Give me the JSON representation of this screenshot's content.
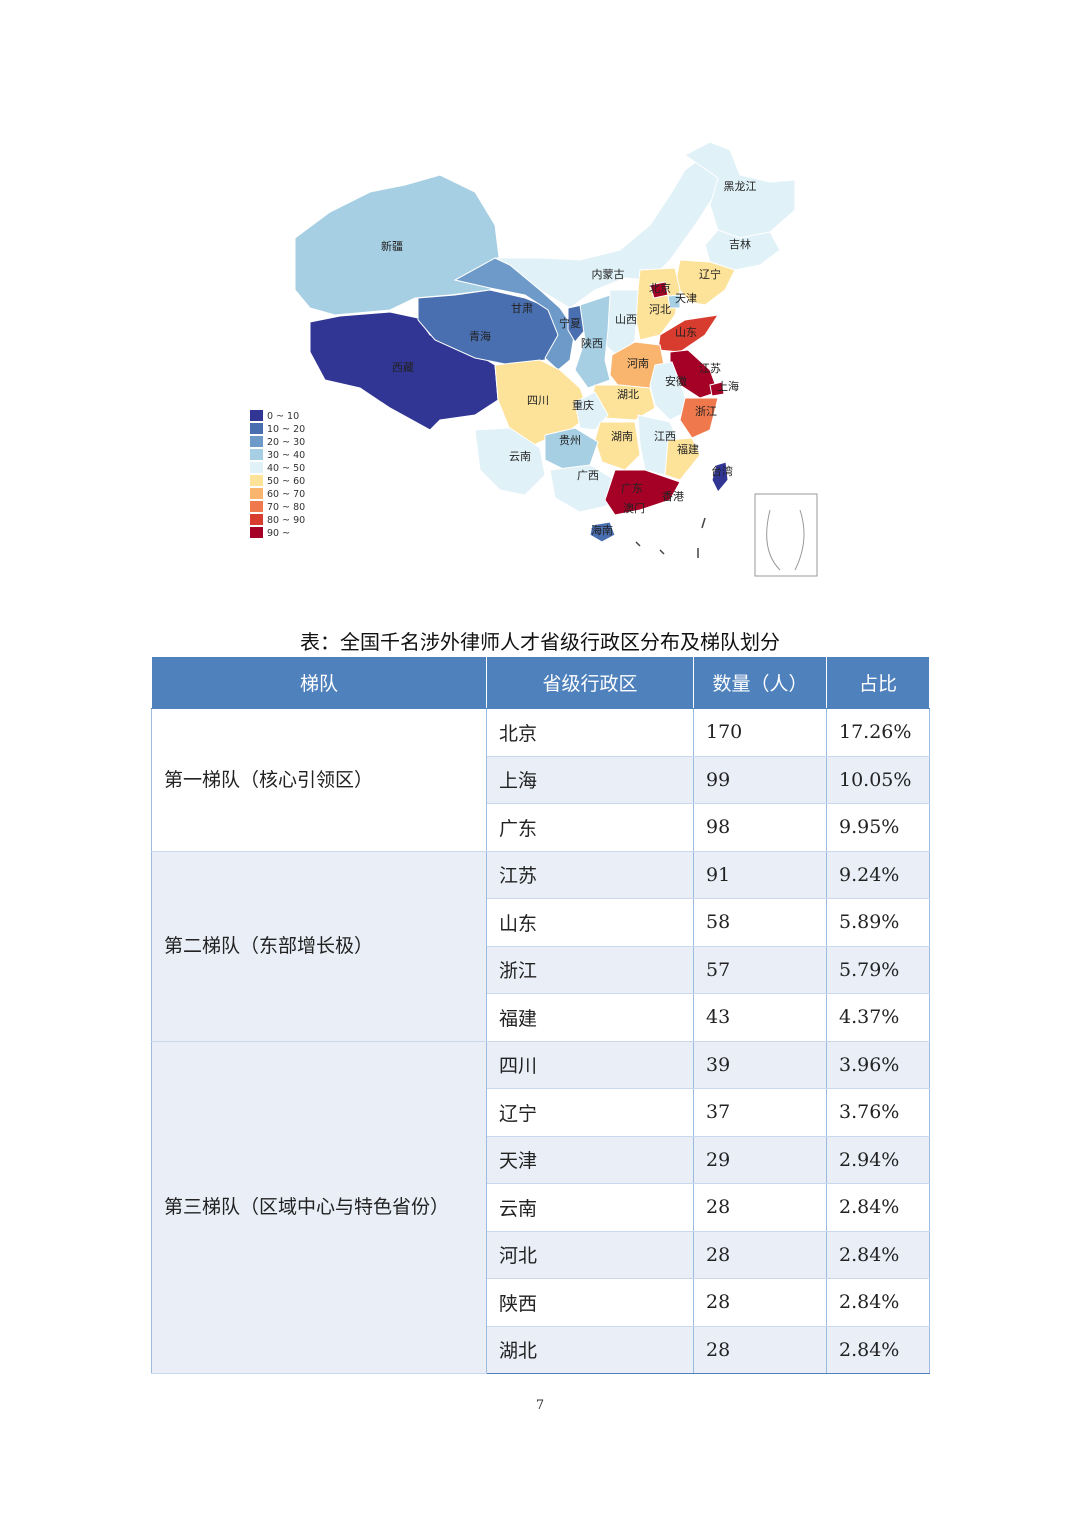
{
  "map": {
    "legend": [
      {
        "label": "0 ~ 10",
        "color": "#313695"
      },
      {
        "label": "10 ~ 20",
        "color": "#4a6fb0"
      },
      {
        "label": "20 ~ 30",
        "color": "#6d9ac8"
      },
      {
        "label": "30 ~ 40",
        "color": "#a6cfe3"
      },
      {
        "label": "40 ~ 50",
        "color": "#e0f1f7"
      },
      {
        "label": "50 ~ 60",
        "color": "#fde29a"
      },
      {
        "label": "60 ~ 70",
        "color": "#f9b46e"
      },
      {
        "label": "70 ~ 80",
        "color": "#f0784d"
      },
      {
        "label": "80 ~ 90",
        "color": "#d73c2e"
      },
      {
        "label": "90 ~",
        "color": "#a50026"
      }
    ],
    "labels": {
      "heilongjiang": "黑龙江",
      "jilin": "吉林",
      "liaoning": "辽宁",
      "neimenggu": "内蒙古",
      "beijing": "北京",
      "tianjin": "天津",
      "hebei": "河北",
      "shanxi": "山西",
      "shandong": "山东",
      "xinjiang": "新疆",
      "gansu": "甘肃",
      "ningxia": "宁夏",
      "qinghai": "青海",
      "shaanxi": "陕西",
      "xizang": "西藏",
      "henan": "河南",
      "jiangsu": "江苏",
      "anhui": "安徽",
      "shanghai": "上海",
      "sichuan": "四川",
      "chongqing": "重庆",
      "hubei": "湖北",
      "zhejiang": "浙江",
      "guizhou": "贵州",
      "hunan": "湖南",
      "jiangxi": "江西",
      "fujian": "福建",
      "yunnan": "云南",
      "guangxi": "广西",
      "taiwan": "台湾",
      "guangdong": "广东",
      "xianggang": "香港",
      "aomen": "澳门",
      "hainan": "海南"
    }
  },
  "caption": "表：全国千名涉外律师人才省级行政区分布及梯队划分",
  "table": {
    "headers": [
      "梯队",
      "省级行政区",
      "数量（人）",
      "占比"
    ],
    "tiers": [
      {
        "name": "第一梯队（核心引领区）",
        "rows": [
          {
            "region": "北京",
            "count": "170",
            "share": "17.26%"
          },
          {
            "region": "上海",
            "count": "99",
            "share": "10.05%"
          },
          {
            "region": "广东",
            "count": "98",
            "share": "9.95%"
          }
        ]
      },
      {
        "name": "第二梯队（东部增长极）",
        "rows": [
          {
            "region": "江苏",
            "count": "91",
            "share": "9.24%"
          },
          {
            "region": "山东",
            "count": "58",
            "share": "5.89%"
          },
          {
            "region": "浙江",
            "count": "57",
            "share": "5.79%"
          },
          {
            "region": "福建",
            "count": "43",
            "share": "4.37%"
          }
        ]
      },
      {
        "name": "第三梯队（区域中心与特色省份）",
        "rows": [
          {
            "region": "四川",
            "count": "39",
            "share": "3.96%"
          },
          {
            "region": "辽宁",
            "count": "37",
            "share": "3.76%"
          },
          {
            "region": "天津",
            "count": "29",
            "share": "2.94%"
          },
          {
            "region": "云南",
            "count": "28",
            "share": "2.84%"
          },
          {
            "region": "河北",
            "count": "28",
            "share": "2.84%"
          },
          {
            "region": "陕西",
            "count": "28",
            "share": "2.84%"
          },
          {
            "region": "湖北",
            "count": "28",
            "share": "2.84%"
          }
        ]
      }
    ]
  },
  "page_number": "7"
}
